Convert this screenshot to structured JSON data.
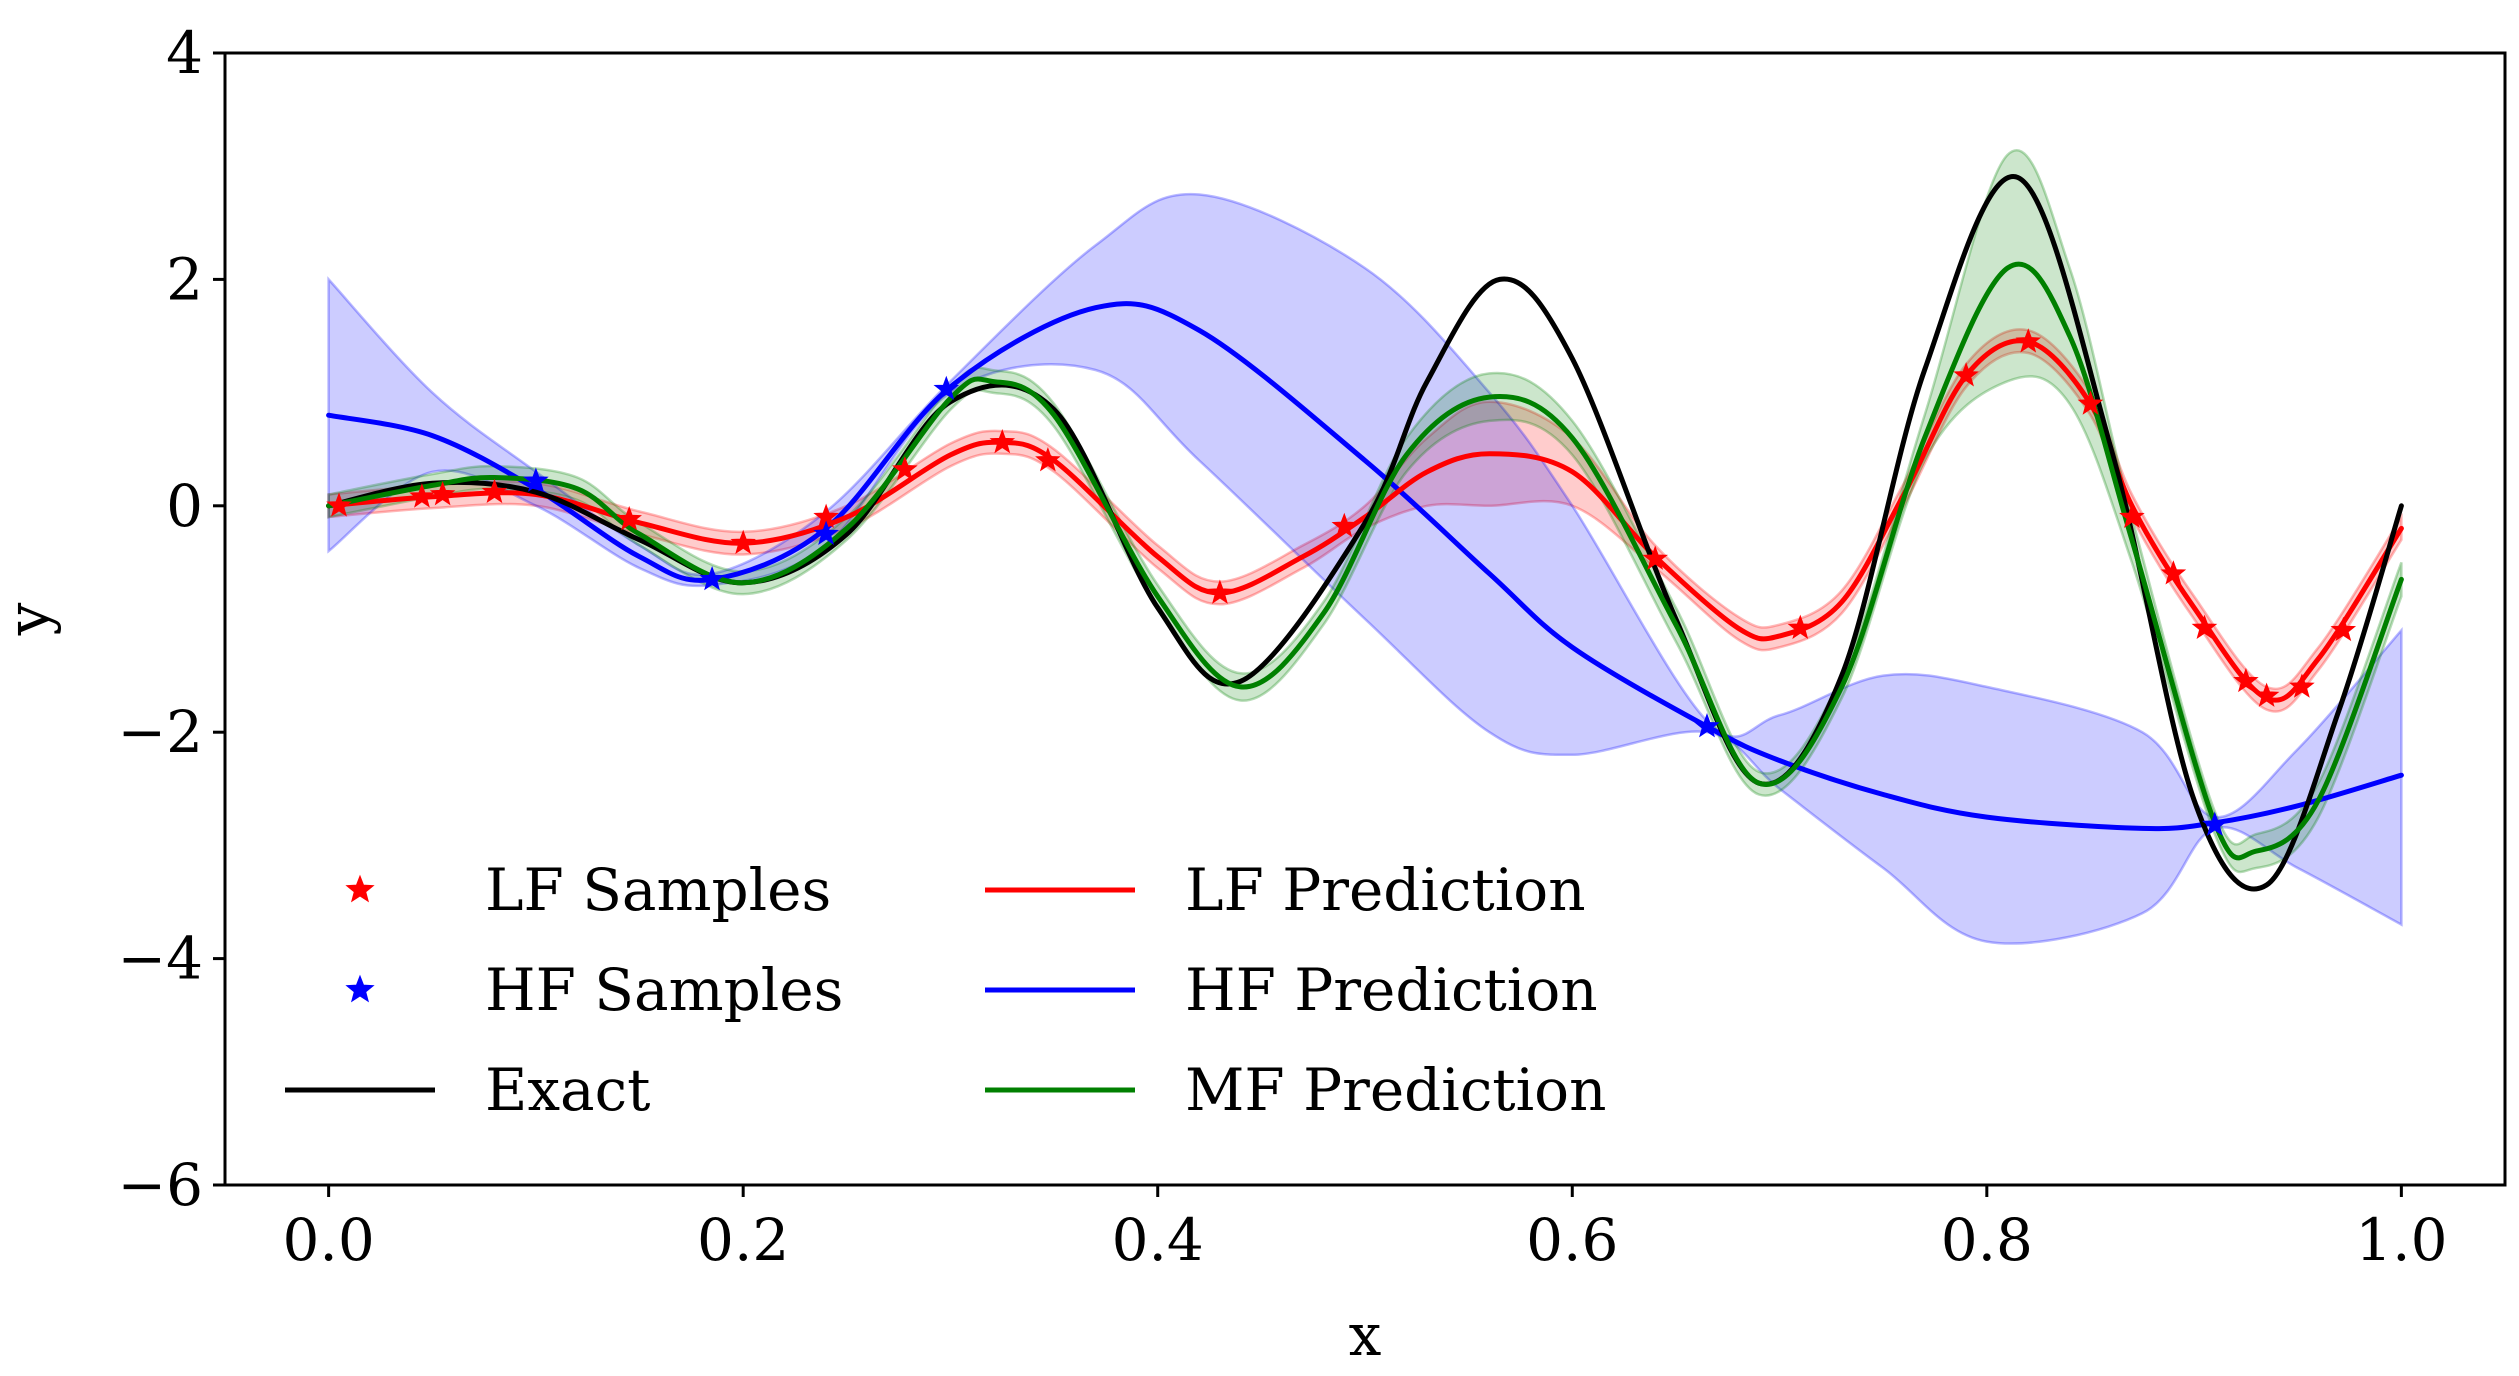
{
  "chart_data": {
    "type": "line",
    "xlabel": "x",
    "ylabel": "y",
    "xlim": [
      -0.05,
      1.05
    ],
    "ylim": [
      -6,
      4
    ],
    "grid": false,
    "legend_placement": "lower-left",
    "x_ticks": [
      0.0,
      0.2,
      0.4,
      0.6,
      0.8,
      1.0
    ],
    "x_tick_labels": [
      "0.0",
      "0.2",
      "0.4",
      "0.6",
      "0.8",
      "1.0"
    ],
    "y_ticks": [
      -6,
      -4,
      -2,
      0,
      2,
      4
    ],
    "y_tick_labels": [
      "−6",
      "−4",
      "−2",
      "0",
      "2",
      "4"
    ],
    "series": [
      {
        "name": "Exact",
        "color": "#000000",
        "kind": "line",
        "x": [
          0.0,
          0.05,
          0.1,
          0.15,
          0.2,
          0.25,
          0.3,
          0.35,
          0.4,
          0.44,
          0.5,
          0.53,
          0.565,
          0.6,
          0.65,
          0.69,
          0.73,
          0.77,
          0.815,
          0.86,
          0.9,
          0.935,
          0.97,
          1.0
        ],
        "y": [
          0.0,
          0.2,
          0.12,
          -0.3,
          -0.68,
          -0.25,
          0.92,
          0.85,
          -0.9,
          -1.55,
          -0.15,
          1.1,
          2.0,
          1.3,
          -1.0,
          -2.45,
          -1.5,
          1.2,
          2.9,
          0.5,
          -2.6,
          -3.35,
          -1.8,
          0.0
        ]
      },
      {
        "name": "LF Prediction",
        "color": "#ff0000",
        "kind": "line",
        "x": [
          0.0,
          0.05,
          0.1,
          0.15,
          0.2,
          0.25,
          0.3,
          0.325,
          0.35,
          0.4,
          0.43,
          0.47,
          0.5,
          0.53,
          0.56,
          0.6,
          0.64,
          0.68,
          0.7,
          0.73,
          0.76,
          0.79,
          0.82,
          0.85,
          0.87,
          0.9,
          0.935,
          0.96,
          1.0
        ],
        "y": [
          0.0,
          0.08,
          0.1,
          -0.15,
          -0.33,
          -0.1,
          0.45,
          0.56,
          0.4,
          -0.45,
          -0.77,
          -0.45,
          -0.1,
          0.3,
          0.46,
          0.3,
          -0.45,
          -1.08,
          -1.15,
          -0.85,
          0.1,
          1.15,
          1.45,
          0.9,
          0.0,
          -0.9,
          -1.7,
          -1.35,
          -0.2
        ],
        "band_lower": [
          -0.1,
          -0.02,
          0.0,
          -0.25,
          -0.43,
          -0.2,
          0.35,
          0.46,
          0.3,
          -0.55,
          -0.87,
          -0.55,
          -0.2,
          0.0,
          0.0,
          0.0,
          -0.55,
          -1.18,
          -1.25,
          -0.95,
          0.0,
          1.05,
          1.35,
          0.8,
          -0.1,
          -1.0,
          -1.8,
          -1.45,
          -0.3
        ],
        "band_upper": [
          0.1,
          0.18,
          0.2,
          -0.05,
          -0.23,
          0.0,
          0.55,
          0.66,
          0.5,
          -0.35,
          -0.67,
          -0.35,
          0.0,
          0.6,
          0.92,
          0.6,
          -0.35,
          -0.98,
          -1.05,
          -0.75,
          0.2,
          1.25,
          1.55,
          1.0,
          0.1,
          -0.8,
          -1.6,
          -1.25,
          -0.1
        ]
      },
      {
        "name": "HF Prediction",
        "color": "#0000ff",
        "kind": "line",
        "x": [
          0.0,
          0.05,
          0.1,
          0.15,
          0.185,
          0.24,
          0.3,
          0.37,
          0.42,
          0.5,
          0.56,
          0.6,
          0.665,
          0.7,
          0.75,
          0.8,
          0.875,
          0.91,
          0.95,
          1.0
        ],
        "y": [
          0.8,
          0.62,
          0.15,
          -0.45,
          -0.65,
          -0.2,
          1.05,
          1.75,
          1.55,
          0.4,
          -0.6,
          -1.25,
          -1.95,
          -2.25,
          -2.55,
          -2.75,
          -2.85,
          -2.8,
          -2.65,
          -2.38
        ],
        "band_lower": [
          -0.4,
          0.3,
          0.0,
          -0.55,
          -0.7,
          -0.35,
          1.0,
          1.2,
          0.4,
          -1.0,
          -2.0,
          -2.2,
          -2.0,
          -2.5,
          -3.2,
          -3.85,
          -3.6,
          -2.85,
          -3.2,
          -3.7
        ],
        "band_upper": [
          2.0,
          1.0,
          0.3,
          -0.35,
          -0.6,
          -0.05,
          1.1,
          2.3,
          2.75,
          2.1,
          1.0,
          0.0,
          -1.9,
          -1.85,
          -1.5,
          -1.6,
          -2.0,
          -2.75,
          -2.15,
          -1.1
        ]
      },
      {
        "name": "MF Prediction",
        "color": "#008000",
        "kind": "line",
        "x": [
          0.0,
          0.05,
          0.08,
          0.12,
          0.15,
          0.2,
          0.25,
          0.3,
          0.32,
          0.35,
          0.4,
          0.44,
          0.48,
          0.52,
          0.56,
          0.6,
          0.65,
          0.69,
          0.73,
          0.77,
          0.81,
          0.84,
          0.87,
          0.91,
          0.93,
          0.96,
          1.0
        ],
        "y": [
          0.0,
          0.18,
          0.25,
          0.15,
          -0.25,
          -0.68,
          -0.2,
          0.95,
          1.1,
          0.8,
          -0.8,
          -1.6,
          -0.95,
          0.45,
          0.96,
          0.6,
          -1.05,
          -2.45,
          -1.6,
          0.6,
          2.1,
          1.5,
          -0.3,
          -2.8,
          -3.05,
          -2.6,
          -0.65
        ],
        "band_lower": [
          -0.1,
          0.08,
          0.15,
          0.05,
          -0.35,
          -0.78,
          -0.3,
          0.85,
          1.0,
          0.7,
          -0.9,
          -1.72,
          -1.05,
          0.3,
          0.75,
          0.45,
          -1.2,
          -2.55,
          -1.7,
          0.4,
          1.1,
          0.9,
          -0.5,
          -2.9,
          -3.2,
          -2.75,
          -0.8
        ],
        "band_upper": [
          0.1,
          0.28,
          0.35,
          0.25,
          -0.15,
          -0.58,
          -0.1,
          1.05,
          1.2,
          0.9,
          -0.7,
          -1.48,
          -0.85,
          0.6,
          1.17,
          0.75,
          -0.9,
          -2.35,
          -1.5,
          0.8,
          3.1,
          2.1,
          -0.1,
          -2.7,
          -2.9,
          -2.45,
          -0.5
        ]
      },
      {
        "name": "LF Samples",
        "color": "#ff0000",
        "kind": "marker",
        "x": [
          0.005,
          0.045,
          0.055,
          0.08,
          0.145,
          0.2,
          0.24,
          0.278,
          0.325,
          0.347,
          0.43,
          0.49,
          0.64,
          0.71,
          0.79,
          0.82,
          0.85,
          0.87,
          0.89,
          0.905,
          0.925,
          0.935,
          0.952,
          0.972
        ],
        "y": [
          0.0,
          0.08,
          0.1,
          0.12,
          -0.12,
          -0.33,
          -0.1,
          0.32,
          0.56,
          0.4,
          -0.77,
          -0.18,
          -0.47,
          -1.08,
          1.15,
          1.45,
          0.9,
          -0.1,
          -0.6,
          -1.08,
          -1.55,
          -1.68,
          -1.6,
          -1.1
        ]
      },
      {
        "name": "HF Samples",
        "color": "#0000ff",
        "kind": "marker",
        "x": [
          0.1,
          0.185,
          0.24,
          0.298,
          0.665,
          0.91
        ],
        "y": [
          0.22,
          -0.65,
          -0.25,
          1.03,
          -1.95,
          -2.82
        ]
      }
    ],
    "legend": [
      {
        "label": "LF Samples",
        "color": "#ff0000",
        "kind": "marker"
      },
      {
        "label": "HF Samples",
        "color": "#0000ff",
        "kind": "marker"
      },
      {
        "label": "Exact",
        "color": "#000000",
        "kind": "line"
      },
      {
        "label": "LF Prediction",
        "color": "#ff0000",
        "kind": "line"
      },
      {
        "label": "HF Prediction",
        "color": "#0000ff",
        "kind": "line"
      },
      {
        "label": "MF Prediction",
        "color": "#008000",
        "kind": "line"
      }
    ]
  }
}
